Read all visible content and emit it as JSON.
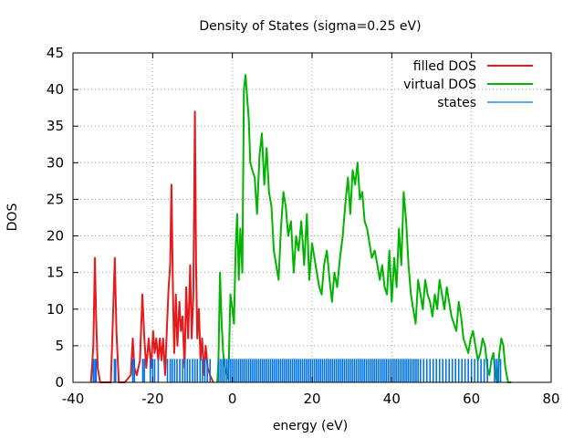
{
  "chart_data": {
    "type": "line",
    "title": "Density of States (sigma=0.25 eV)",
    "xlabel": "energy (eV)",
    "ylabel": "DOS",
    "xlim": [
      -40,
      80
    ],
    "ylim": [
      0,
      45
    ],
    "x_ticks": [
      "-40",
      "-20",
      "0",
      "20",
      "40",
      "60",
      "80"
    ],
    "y_ticks": [
      "0",
      "5",
      "10",
      "15",
      "20",
      "25",
      "30",
      "35",
      "40",
      "45"
    ],
    "grid": true,
    "legend_position": "top-right",
    "series": [
      {
        "name": "filled DOS",
        "color": "#e41a1c",
        "x": [
          -35.5,
          -34.9,
          -34.5,
          -34.2,
          -33.8,
          -33.2,
          -32,
          -30.5,
          -29.9,
          -29.5,
          -29.1,
          -28.5,
          -27,
          -25.5,
          -25,
          -24.6,
          -24,
          -23.2,
          -22.6,
          -22.1,
          -21.6,
          -21,
          -20.4,
          -19.9,
          -19.5,
          -19.1,
          -18.6,
          -18.2,
          -17.8,
          -17.4,
          -16.9,
          -16.4,
          -16,
          -15.6,
          -15.3,
          -14.9,
          -14.6,
          -14.2,
          -13.8,
          -13.3,
          -12.9,
          -12.5,
          -12,
          -11.6,
          -11.1,
          -10.6,
          -10.2,
          -9.8,
          -9.4,
          -9.1,
          -8.8,
          -8.4,
          -8,
          -7.6,
          -7.1,
          -6.7,
          -6.2,
          -5.6,
          -4.8
        ],
        "y": [
          0,
          5,
          17,
          9,
          2,
          0,
          0,
          0,
          10,
          17,
          7,
          0,
          0,
          1,
          6,
          2,
          1,
          3,
          12,
          6,
          2,
          6,
          2,
          7,
          4,
          6,
          3,
          6,
          3,
          6,
          1,
          8,
          13,
          16,
          27,
          12,
          4,
          12,
          5,
          11,
          7,
          9,
          2,
          13,
          6,
          16,
          6,
          12,
          37,
          16,
          6,
          10,
          3,
          6,
          1,
          5,
          2,
          1,
          0
        ]
      },
      {
        "name": "virtual DOS",
        "color": "#00b400",
        "x": [
          -3.8,
          -3.5,
          -3.1,
          -2.7,
          -2.3,
          -1.9,
          -1.4,
          -1,
          -0.5,
          0,
          0.4,
          0.8,
          1.2,
          1.6,
          2,
          2.5,
          2.9,
          3.3,
          3.7,
          4.1,
          4.5,
          5,
          5.6,
          6.2,
          6.8,
          7.4,
          8,
          8.6,
          9.2,
          9.8,
          10.4,
          11,
          11.6,
          12.2,
          12.8,
          13.4,
          14,
          14.7,
          15.4,
          16,
          16.6,
          17.3,
          18,
          18.7,
          19.3,
          20,
          20.6,
          21.2,
          21.8,
          22.4,
          23,
          23.7,
          24.4,
          25,
          25.6,
          26.3,
          27,
          27.7,
          28.3,
          29,
          29.6,
          30.2,
          30.8,
          31.4,
          32,
          32.6,
          33.2,
          33.8,
          34.4,
          35,
          35.7,
          36.4,
          37,
          37.6,
          38.2,
          38.8,
          39.4,
          40,
          40.6,
          41.2,
          41.8,
          42.4,
          43,
          43.6,
          44.2,
          44.8,
          45.4,
          46,
          46.6,
          47.2,
          47.8,
          48.4,
          49,
          49.6,
          50.2,
          50.8,
          51.4,
          52,
          52.6,
          53.2,
          53.8,
          54.4,
          55,
          55.6,
          56.2,
          56.8,
          57.4,
          58,
          58.6,
          59.2,
          59.8,
          60.4,
          61,
          61.6,
          62.2,
          62.8,
          63.4,
          64,
          64.5,
          65,
          65.5,
          66,
          66.5,
          67,
          67.5,
          68,
          68.5,
          69.2,
          70
        ],
        "y": [
          0,
          3,
          15,
          8,
          4,
          2,
          1,
          0.5,
          12,
          10,
          8,
          18,
          23,
          14,
          21,
          15,
          40,
          42,
          39,
          36,
          30,
          29,
          28,
          23,
          31,
          34,
          27,
          32,
          26,
          24,
          18,
          16,
          14,
          21,
          26,
          24,
          20,
          22,
          15,
          20,
          18,
          22,
          16,
          23,
          14,
          19,
          17,
          15,
          13,
          12,
          16,
          18,
          14,
          11,
          15,
          13,
          17,
          20,
          24,
          28,
          23,
          29,
          27,
          30,
          25,
          26,
          22,
          21,
          19,
          17,
          18,
          16,
          14,
          16,
          13,
          12,
          18,
          11,
          17,
          13,
          21,
          16,
          26,
          22,
          16,
          12,
          10,
          8,
          14,
          12,
          10,
          14,
          12,
          11,
          9,
          12,
          10,
          14,
          12,
          10,
          13,
          11,
          9,
          8,
          7,
          11,
          9,
          6,
          5,
          4,
          6,
          7,
          5,
          3,
          4,
          6,
          5,
          2,
          1,
          3,
          4,
          1,
          0,
          4,
          6,
          5,
          2,
          0,
          0
        ]
      },
      {
        "name": "states",
        "color": "#0072e6",
        "style": "impulses",
        "value": 3.2,
        "x": [
          -34.9,
          -34.5,
          -34.2,
          -29.6,
          -29.3,
          -25,
          -24.6,
          -22.5,
          -22.1,
          -20.6,
          -20,
          -19.5,
          -18.6,
          -16.3,
          -15.6,
          -15.1,
          -14.5,
          -13.9,
          -13.2,
          -12.5,
          -11.9,
          -11.3,
          -10.7,
          -10,
          -9.4,
          -8.8,
          -8.1,
          -7.5,
          -6.9,
          -6.3,
          -5.6,
          -3.4,
          -2.9,
          -2.4,
          -1.9,
          -1.4,
          -0.9,
          -0.4,
          0.1,
          0.6,
          1.1,
          1.6,
          2.1,
          2.6,
          3.1,
          3.6,
          4.1,
          4.6,
          5.1,
          5.6,
          6.1,
          6.6,
          7.1,
          7.6,
          8.1,
          8.6,
          9.1,
          9.6,
          10.1,
          10.6,
          11.1,
          11.6,
          12.1,
          12.6,
          13.1,
          13.6,
          14.1,
          14.6,
          15.1,
          15.6,
          16.1,
          16.6,
          17.1,
          17.6,
          18.1,
          18.6,
          19.1,
          19.6,
          20.1,
          20.6,
          21.1,
          21.6,
          22.1,
          22.6,
          23.1,
          23.6,
          24.1,
          24.6,
          25.1,
          25.6,
          26.1,
          26.6,
          27.1,
          27.6,
          28.1,
          28.6,
          29.1,
          29.6,
          30.1,
          30.6,
          31.1,
          31.6,
          32.1,
          32.6,
          33.1,
          33.6,
          34.1,
          34.6,
          35.1,
          35.6,
          36.1,
          36.6,
          37.1,
          37.6,
          38.1,
          38.6,
          39.1,
          39.6,
          40.1,
          40.6,
          41.1,
          41.6,
          42.1,
          42.6,
          43.1,
          43.6,
          44.1,
          44.6,
          45.1,
          45.6,
          46.1,
          46.6,
          47.2,
          48,
          48.8,
          49.6,
          50.4,
          51.2,
          52,
          52.8,
          53.6,
          54.4,
          55.2,
          56,
          56.8,
          57.6,
          58.4,
          59.2,
          60,
          60.8,
          61.6,
          62.4,
          63.2,
          64,
          65.8,
          66.3,
          66.8,
          67.3
        ]
      }
    ]
  }
}
